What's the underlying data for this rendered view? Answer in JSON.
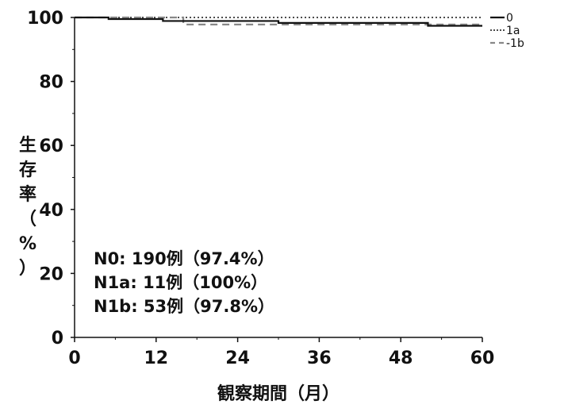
{
  "chart_data": {
    "type": "line",
    "chart_subtype": "kaplan-meier step",
    "xlabel": "観察期間（月）",
    "ylabel": "生存率（%）",
    "xlim": [
      0,
      60
    ],
    "ylim": [
      0,
      100
    ],
    "x_ticks": [
      "0",
      "12",
      "24",
      "36",
      "48",
      "60"
    ],
    "y_ticks": [
      "0",
      "20",
      "40",
      "60",
      "80",
      "100"
    ],
    "grid": false,
    "legend_position": "top-right outside plot",
    "series": [
      {
        "name": "0",
        "style": "solid",
        "color": "#111111",
        "x": [
          0,
          5,
          13,
          30,
          52,
          60
        ],
        "y": [
          100,
          99.5,
          98.9,
          98.3,
          97.4,
          97.4
        ]
      },
      {
        "name": "1a",
        "style": "dotted",
        "color": "#333333",
        "x": [
          0,
          60
        ],
        "y": [
          100,
          100
        ]
      },
      {
        "name": "1b",
        "style": "dashed",
        "color": "#888888",
        "x": [
          0,
          16,
          30,
          60
        ],
        "y": [
          100,
          97.8,
          97.8,
          97.8
        ]
      }
    ],
    "legend_labels": [
      "0",
      "1a",
      "-1b"
    ],
    "annotations": [
      "N0: 190例（97.4%）",
      "N1a: 11例（100%）",
      "N1b: 53例（97.8%）"
    ]
  }
}
